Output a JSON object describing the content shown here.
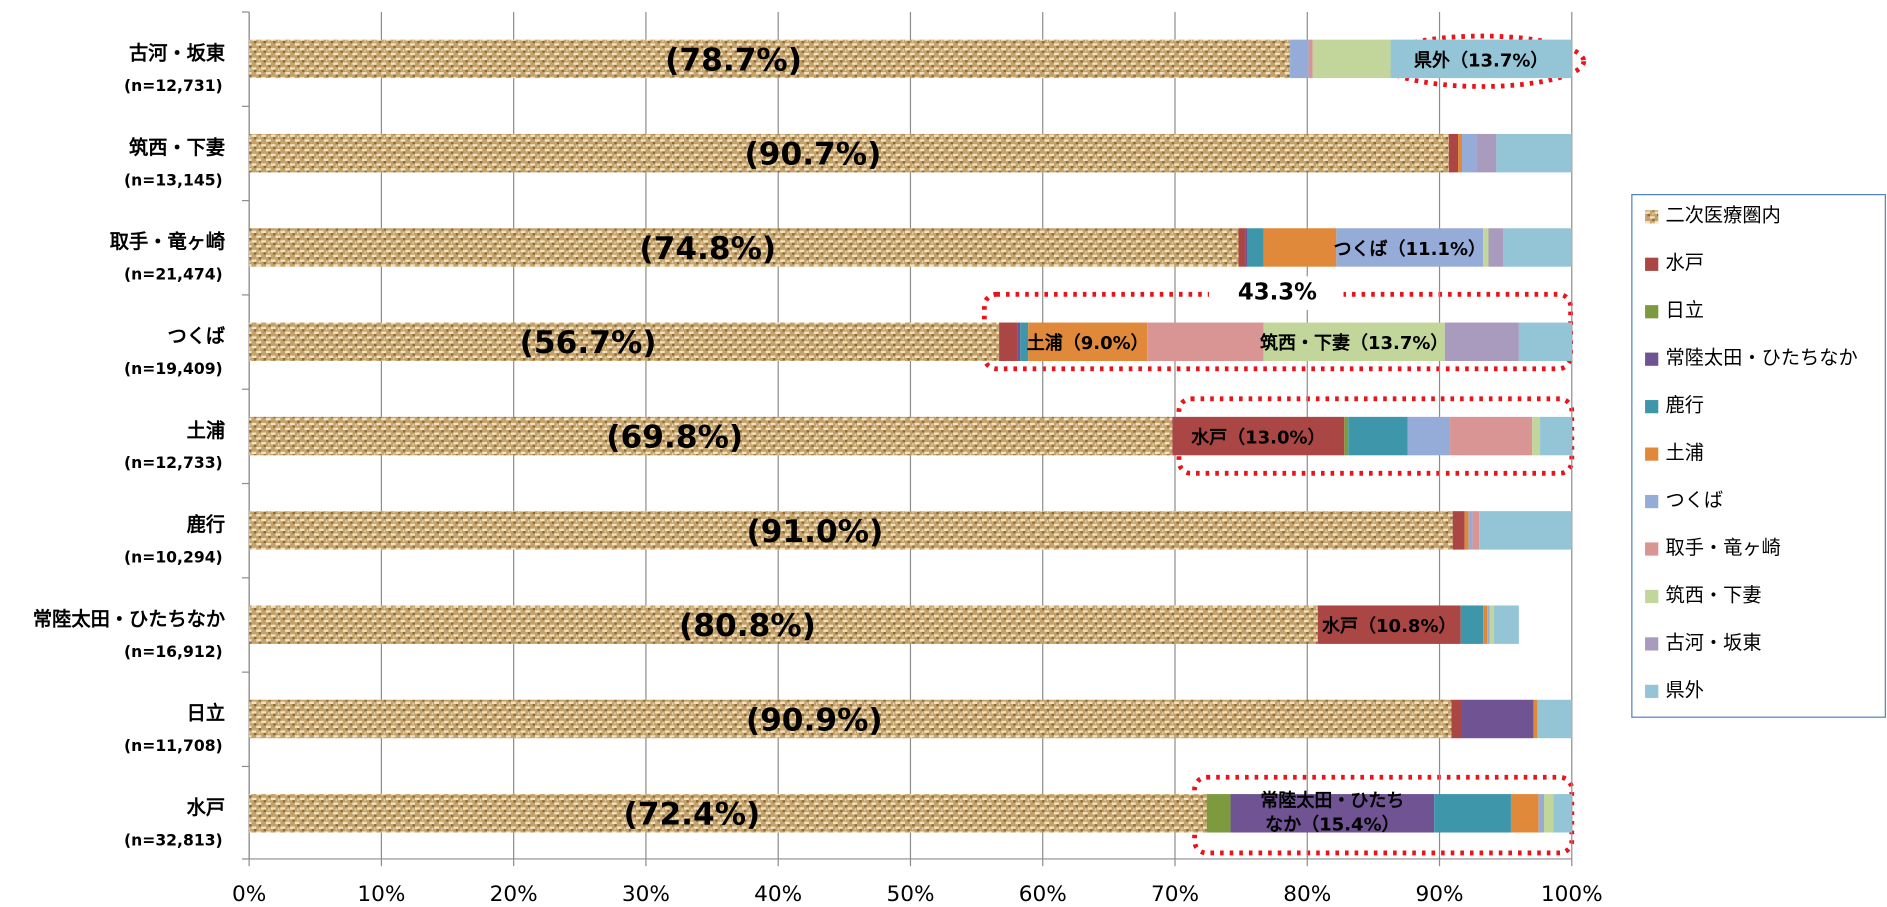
{
  "chart_data": {
    "type": "stacked_barh",
    "categories": [
      "古河・坂東",
      "筑西・下妻",
      "取手・竜ヶ崎",
      "つくば",
      "土浦",
      "鹿行",
      "常陸太田・ひたちなか",
      "日立",
      "水戸"
    ],
    "category_notes": [
      "(n=12,731)",
      "(n=13,145)",
      "(n=21,474)",
      "(n=19,409)",
      "(n=12,733)",
      "(n=10,294)",
      "(n=16,912)",
      "(n=11,708)",
      "(n=32,813)"
    ],
    "series": [
      {
        "name": "二次医療圏内",
        "color": "#c4a26a",
        "pattern": "burlap",
        "values": [
          78.7,
          90.7,
          74.8,
          56.7,
          69.8,
          91.0,
          80.8,
          90.9,
          72.4
        ],
        "value_labels": [
          "(78.7%)",
          "(90.7%)",
          "(74.8%)",
          "(56.7%)",
          "(69.8%)",
          "(91.0%)",
          "(80.8%)",
          "(90.9%)",
          "(72.4%)"
        ]
      },
      {
        "name": "水戸",
        "color": "#aa4643",
        "values": [
          0,
          0.7,
          0.5,
          1.4,
          13.0,
          0.9,
          10.8,
          0.8,
          0
        ],
        "value_labels": [
          null,
          null,
          null,
          null,
          "水戸（13.0%）",
          null,
          "水戸（10.8%）",
          null,
          null
        ]
      },
      {
        "name": "日立",
        "color": "#7d9a3f",
        "values": [
          0,
          0,
          0,
          0,
          0.3,
          0,
          0,
          0,
          1.8
        ]
      },
      {
        "name": "常陸太田・ひたちなか",
        "color": "#6f5393",
        "values": [
          0,
          0,
          0.2,
          0.2,
          0,
          0,
          0,
          5.4,
          15.4
        ],
        "value_labels": [
          null,
          null,
          null,
          null,
          null,
          null,
          null,
          null,
          [
            "常陸太田・ひたち",
            "なか（15.4%）"
          ]
        ]
      },
      {
        "name": "鹿行",
        "color": "#3e96ab",
        "values": [
          0,
          0,
          1.2,
          0.6,
          4.5,
          0,
          1.7,
          0,
          5.8
        ]
      },
      {
        "name": "土浦",
        "color": "#e0893b",
        "values": [
          0,
          0.3,
          5.5,
          9.0,
          0,
          0.3,
          0.3,
          0.3,
          2.1
        ],
        "value_labels": [
          null,
          null,
          null,
          "土浦（9.0%）",
          null,
          null,
          null,
          null,
          null
        ]
      },
      {
        "name": "つくば",
        "color": "#95acd8",
        "values": [
          1.4,
          1.1,
          11.1,
          0,
          3.2,
          0.3,
          0.2,
          0,
          0.4
        ],
        "value_labels": [
          null,
          null,
          "つくば（11.1%）",
          null,
          null,
          null,
          null,
          null,
          null
        ]
      },
      {
        "name": "取手・竜ヶ崎",
        "color": "#d99594",
        "values": [
          0.3,
          0,
          0,
          8.8,
          6.2,
          0.5,
          0,
          0,
          0
        ]
      },
      {
        "name": "筑西・下妻",
        "color": "#c2d69b",
        "values": [
          5.9,
          0,
          0.4,
          13.7,
          0.6,
          0,
          0.3,
          0,
          0.7
        ],
        "value_labels": [
          null,
          null,
          null,
          "筑西・下妻（13.7%）",
          null,
          null,
          null,
          null,
          null
        ]
      },
      {
        "name": "古河・坂東",
        "color": "#a89bbd",
        "values": [
          0,
          1.5,
          1.1,
          5.6,
          0,
          0,
          0,
          0,
          0
        ]
      },
      {
        "name": "県外",
        "color": "#93c5d6",
        "values": [
          13.7,
          5.7,
          5.2,
          4.0,
          2.4,
          7.0,
          1.9,
          2.6,
          1.4
        ],
        "value_labels": [
          "県外（13.7%）",
          null,
          null,
          null,
          null,
          null,
          null,
          null,
          null
        ]
      }
    ],
    "xlim": [
      0,
      100
    ],
    "xticks": [
      {
        "value": 0,
        "label": "0%"
      },
      {
        "value": 10,
        "label": "10%"
      },
      {
        "value": 20,
        "label": "20%"
      },
      {
        "value": 30,
        "label": "30%"
      },
      {
        "value": 40,
        "label": "40%"
      },
      {
        "value": 50,
        "label": "50%"
      },
      {
        "value": 60,
        "label": "60%"
      },
      {
        "value": 70,
        "label": "70%"
      },
      {
        "value": 80,
        "label": "80%"
      },
      {
        "value": 90,
        "label": "90%"
      },
      {
        "value": 100,
        "label": "100%"
      }
    ],
    "grid": true,
    "legend": "right",
    "annotations": [
      "43.3%"
    ]
  }
}
